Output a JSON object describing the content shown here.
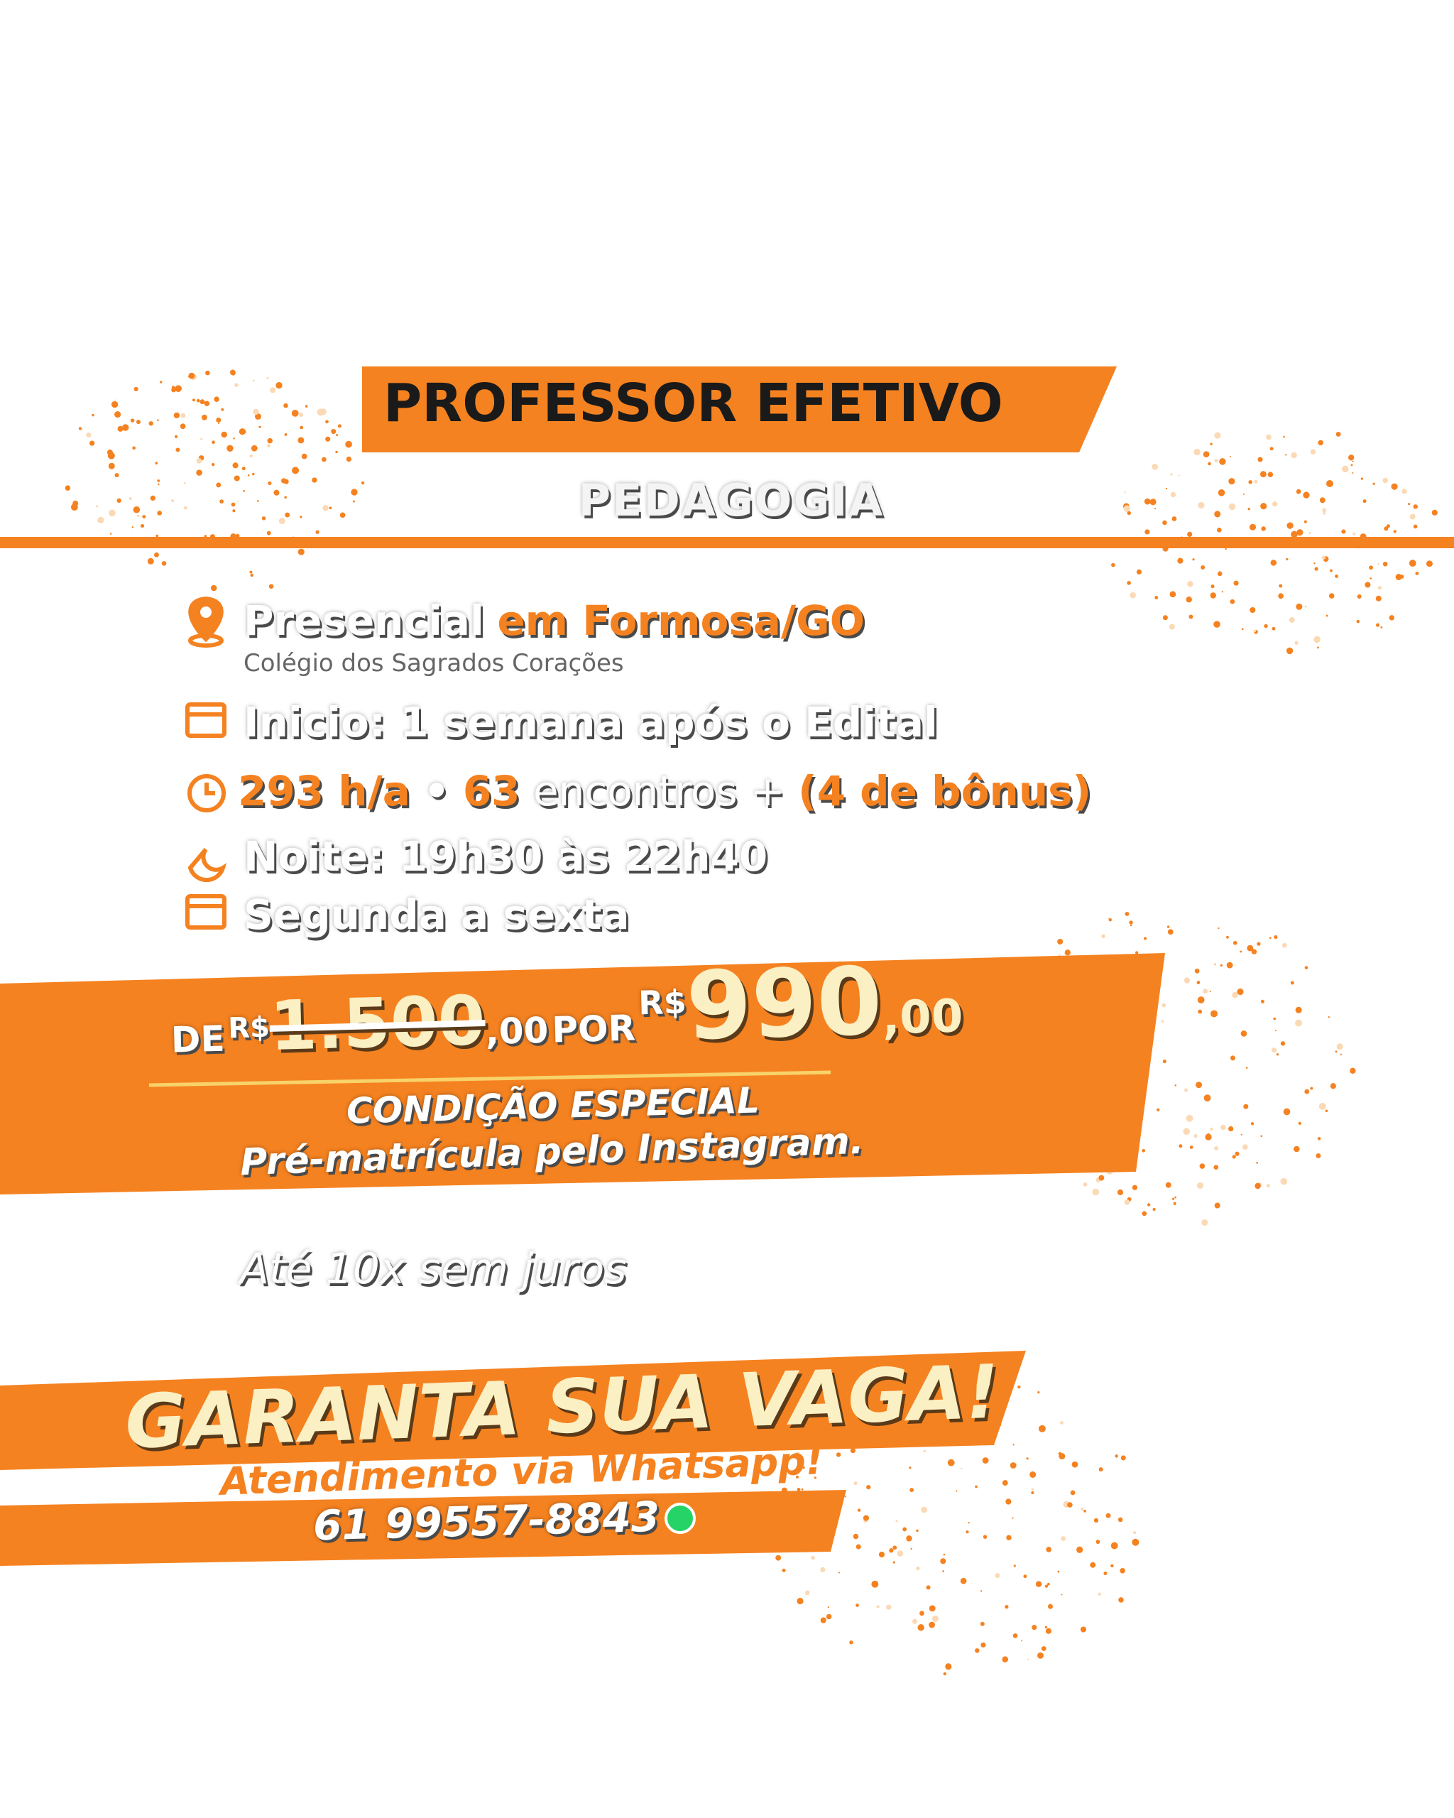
{
  "header": {
    "title": "PROFESSOR EFETIVO",
    "subtitle": "PEDAGOGIA"
  },
  "details": {
    "location": {
      "mode": "Presencial",
      "city": "em Formosa/GO",
      "venue": "Colégio dos Sagrados Corações"
    },
    "start": "Inicio: 1 semana após o Edital",
    "hours": {
      "load": "293 h/a",
      "separator": "•",
      "meetings": "63",
      "meetings_label": "encontros +",
      "bonus": "(4 de bônus)"
    },
    "schedule": "Noite: 19h30 às 22h40",
    "days": "Segunda a sexta"
  },
  "price": {
    "from_label": "DE",
    "from_currency": "R$",
    "from_amount": "1.500",
    "from_cents": ",00",
    "to_label": "POR",
    "to_currency": "R$",
    "to_amount": "990",
    "to_cents": ",00",
    "condition": "CONDIÇÃO ESPECIAL",
    "condition_note": "Pré-matrícula pelo Instagram."
  },
  "installments": "Até 10x sem juros",
  "cta": {
    "title": "GARANTA SUA VAGA!",
    "subtitle": "Atendimento via Whatsapp!",
    "phone": "61 99557-8843"
  }
}
